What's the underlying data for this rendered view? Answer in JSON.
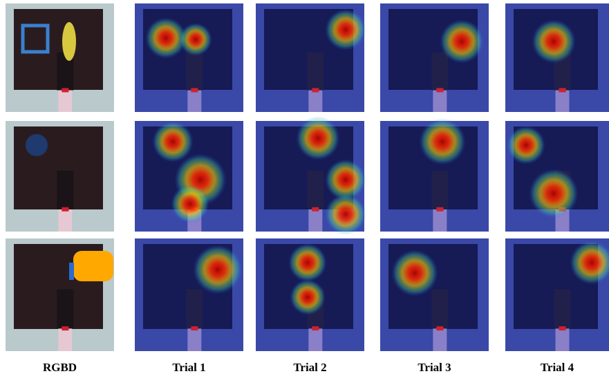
{
  "columns": [
    "RGBD",
    "Trial 1",
    "Trial 2",
    "Trial 3",
    "Trial 4"
  ]
}
